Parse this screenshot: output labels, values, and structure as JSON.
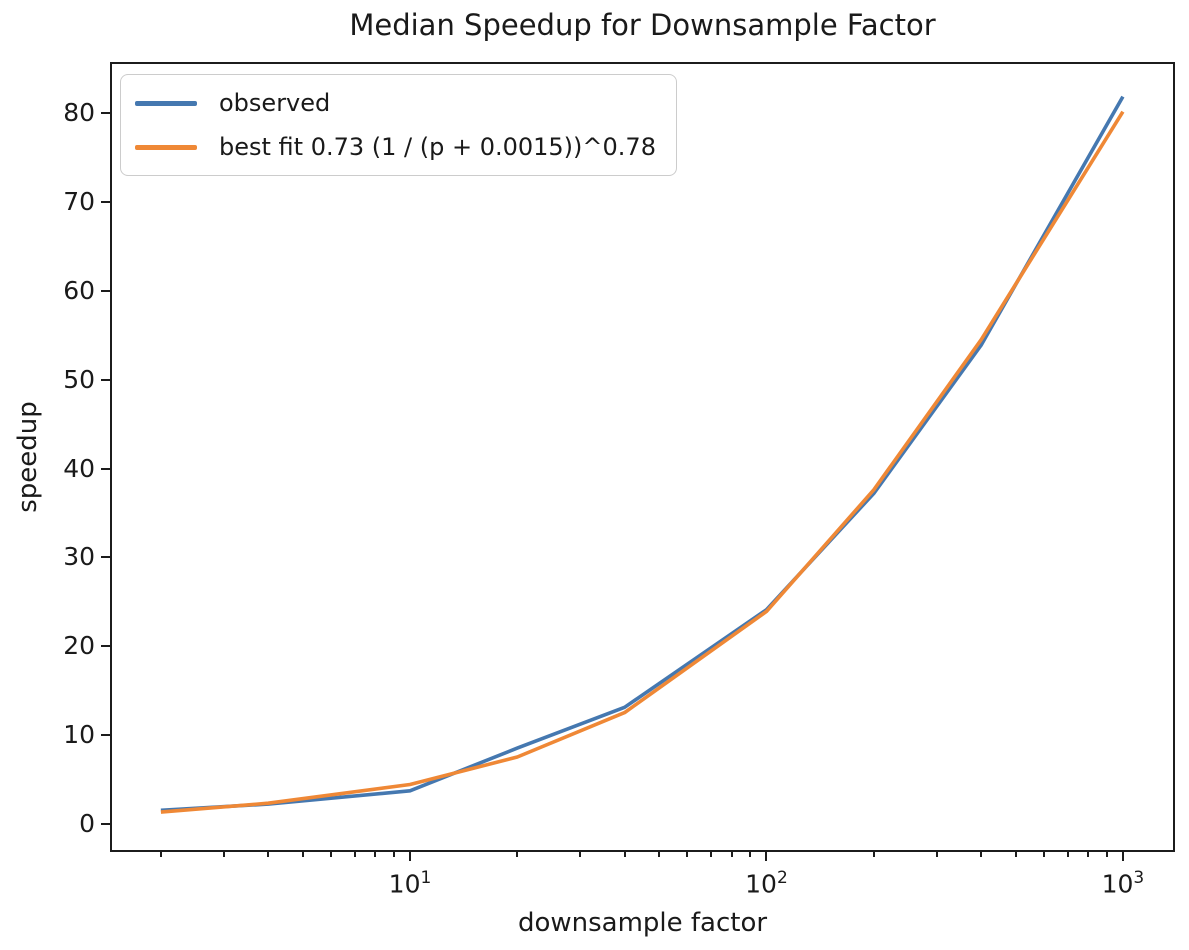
{
  "chart_data": {
    "type": "line",
    "title": "Median Speedup for Downsample Factor",
    "xlabel": "downsample factor",
    "ylabel": "speedup",
    "x_scale": "log",
    "y_scale": "linear",
    "xlim": [
      1.44,
      1400
    ],
    "ylim": [
      -3.2,
      85.8
    ],
    "grid": false,
    "x": [
      2,
      4,
      10,
      20,
      40,
      100,
      200,
      400,
      1000
    ],
    "series": [
      {
        "name": "observed",
        "color": "#4578b0",
        "values": [
          1.5,
          2.2,
          3.7,
          8.5,
          13.1,
          24.1,
          37.2,
          53.9,
          81.9
        ]
      },
      {
        "name": "best fit 0.73 (1 / (p + 0.0015))^0.78",
        "color": "#ef8836",
        "values": [
          1.3,
          2.3,
          4.4,
          7.5,
          12.5,
          23.9,
          37.6,
          54.5,
          80.2
        ]
      }
    ],
    "y_ticks": [
      0,
      10,
      20,
      30,
      40,
      50,
      60,
      70,
      80
    ],
    "x_major_ticks": [
      {
        "value": 10,
        "base": "10",
        "exp": "1"
      },
      {
        "value": 100,
        "base": "10",
        "exp": "2"
      },
      {
        "value": 1000,
        "base": "10",
        "exp": "3"
      }
    ],
    "x_minor_tick_decades": [
      1,
      10,
      100
    ],
    "legend": {
      "position": "upper-left",
      "entries": [
        "observed",
        "best fit 0.73 (1 / (p + 0.0015))^0.78"
      ]
    }
  }
}
